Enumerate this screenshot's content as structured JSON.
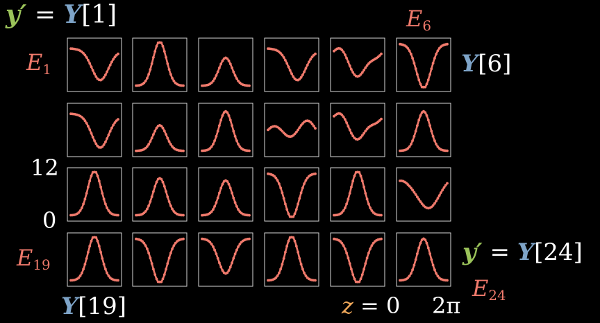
{
  "equation_top": {
    "lhs": "y′",
    "eq": "=",
    "Y": "Y",
    "idx": "[1]"
  },
  "equation_bottom": {
    "lhs": "y′",
    "eq": "=",
    "Y": "Y",
    "idx": "[24]"
  },
  "labels": {
    "E1": {
      "base": "E",
      "sub": "1"
    },
    "E6": {
      "base": "E",
      "sub": "6"
    },
    "E19": {
      "base": "E",
      "sub": "19"
    },
    "E24": {
      "base": "E",
      "sub": "24"
    },
    "Y6": {
      "Y": "Y",
      "idx": "[6]"
    },
    "Y19": {
      "Y": "Y",
      "idx": "[19]"
    },
    "y_top": "12",
    "y_bottom": "0",
    "z_label": "z",
    "z_eq": "= 0",
    "z_end": "2π"
  },
  "colors": {
    "curve": "#f07a6c",
    "frame": "#d9d9d9",
    "green": "#9bc35a",
    "blue": "#7ea4c8",
    "orange": "#f0a85a"
  },
  "chart_data": {
    "type": "line",
    "layout": "4x6 grid of small multiples",
    "x_range": [
      0,
      6.2832
    ],
    "ylim": [
      0,
      12
    ],
    "panels": [
      {
        "shape": "valley_right",
        "amp": 0.65
      },
      {
        "shape": "peak",
        "amp": 0.95
      },
      {
        "shape": "peak",
        "amp": 0.6
      },
      {
        "shape": "valley_right",
        "amp": 0.65
      },
      {
        "shape": "valley_wavy",
        "amp": 0.55
      },
      {
        "shape": "valley",
        "amp": 0.95
      },
      {
        "shape": "valley_right",
        "amp": 0.7
      },
      {
        "shape": "peak",
        "amp": 0.55
      },
      {
        "shape": "peak",
        "amp": 0.85
      },
      {
        "shape": "wave_small",
        "amp": 0.35
      },
      {
        "shape": "valley_wavy",
        "amp": 0.5
      },
      {
        "shape": "peak",
        "amp": 0.85
      },
      {
        "shape": "peak",
        "amp": 0.95
      },
      {
        "shape": "peak",
        "amp": 0.8
      },
      {
        "shape": "peak",
        "amp": 0.75
      },
      {
        "shape": "valley",
        "amp": 0.95
      },
      {
        "shape": "peak",
        "amp": 0.95
      },
      {
        "shape": "slope_down",
        "amp": 0.55
      },
      {
        "shape": "peak",
        "amp": 0.95
      },
      {
        "shape": "valley",
        "amp": 0.95
      },
      {
        "shape": "valley",
        "amp": 0.75
      },
      {
        "shape": "peak",
        "amp": 0.95
      },
      {
        "shape": "valley",
        "amp": 0.95
      },
      {
        "shape": "peak",
        "amp": 0.9
      }
    ]
  }
}
